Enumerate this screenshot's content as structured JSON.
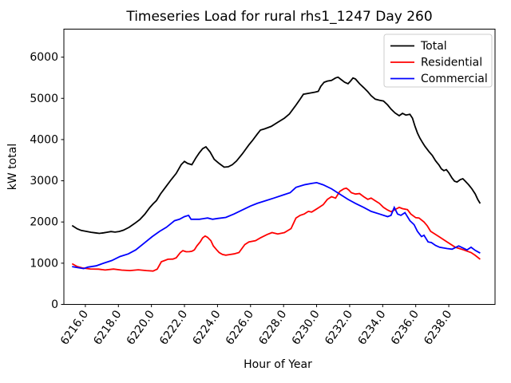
{
  "figure": {
    "background": "#ffffff"
  },
  "legend": {
    "position": "upper right",
    "border_color": "#cccccc"
  },
  "chart_data": {
    "type": "line",
    "title": "Timeseries Load for rural rhs1_1247  Day 260",
    "xlabel": "Hour of Year",
    "ylabel": "kW total",
    "xlim": [
      6214.7,
      6240.8
    ],
    "ylim": [
      0,
      6680
    ],
    "grid": false,
    "x_ticks": [
      6216,
      6218,
      6220,
      6222,
      6224,
      6226,
      6228,
      6230,
      6232,
      6234,
      6236,
      6238
    ],
    "x_tick_labels": [
      "6216.0",
      "6218.0",
      "6220.0",
      "6222.0",
      "6224.0",
      "6226.0",
      "6228.0",
      "6230.0",
      "6232.0",
      "6234.0",
      "6236.0",
      "6238.0"
    ],
    "y_ticks": [
      0,
      1000,
      2000,
      3000,
      4000,
      5000,
      6000
    ],
    "y_tick_labels": [
      "0",
      "1000",
      "2000",
      "3000",
      "4000",
      "5000",
      "6000"
    ],
    "series": [
      {
        "name": "Total",
        "color": "#000000",
        "points": [
          [
            6215.2,
            1915
          ],
          [
            6215.5,
            1835
          ],
          [
            6215.75,
            1795
          ],
          [
            6216.0,
            1778
          ],
          [
            6216.35,
            1750
          ],
          [
            6216.6,
            1736
          ],
          [
            6216.85,
            1723
          ],
          [
            6217.1,
            1736
          ],
          [
            6217.3,
            1750
          ],
          [
            6217.55,
            1768
          ],
          [
            6217.8,
            1755
          ],
          [
            6218.05,
            1770
          ],
          [
            6218.3,
            1800
          ],
          [
            6218.65,
            1870
          ],
          [
            6219.0,
            1970
          ],
          [
            6219.3,
            2060
          ],
          [
            6219.6,
            2190
          ],
          [
            6219.9,
            2350
          ],
          [
            6220.1,
            2440
          ],
          [
            6220.3,
            2520
          ],
          [
            6220.55,
            2680
          ],
          [
            6220.9,
            2870
          ],
          [
            6221.2,
            3030
          ],
          [
            6221.5,
            3180
          ],
          [
            6221.8,
            3390
          ],
          [
            6222.0,
            3470
          ],
          [
            6222.2,
            3420
          ],
          [
            6222.45,
            3390
          ],
          [
            6222.7,
            3560
          ],
          [
            6222.9,
            3680
          ],
          [
            6223.1,
            3780
          ],
          [
            6223.3,
            3825
          ],
          [
            6223.55,
            3700
          ],
          [
            6223.8,
            3520
          ],
          [
            6224.1,
            3420
          ],
          [
            6224.4,
            3330
          ],
          [
            6224.65,
            3340
          ],
          [
            6224.9,
            3390
          ],
          [
            6225.15,
            3480
          ],
          [
            6225.5,
            3650
          ],
          [
            6225.9,
            3870
          ],
          [
            6226.1,
            3970
          ],
          [
            6226.4,
            4130
          ],
          [
            6226.6,
            4230
          ],
          [
            6226.85,
            4260
          ],
          [
            6227.25,
            4320
          ],
          [
            6227.65,
            4420
          ],
          [
            6228.05,
            4520
          ],
          [
            6228.35,
            4620
          ],
          [
            6228.7,
            4810
          ],
          [
            6229.0,
            4980
          ],
          [
            6229.2,
            5100
          ],
          [
            6229.6,
            5130
          ],
          [
            6229.9,
            5150
          ],
          [
            6230.1,
            5170
          ],
          [
            6230.25,
            5290
          ],
          [
            6230.45,
            5390
          ],
          [
            6230.65,
            5420
          ],
          [
            6230.9,
            5435
          ],
          [
            6231.15,
            5495
          ],
          [
            6231.3,
            5515
          ],
          [
            6231.5,
            5450
          ],
          [
            6231.7,
            5390
          ],
          [
            6231.9,
            5355
          ],
          [
            6232.05,
            5420
          ],
          [
            6232.2,
            5495
          ],
          [
            6232.35,
            5470
          ],
          [
            6232.6,
            5355
          ],
          [
            6232.85,
            5260
          ],
          [
            6233.1,
            5160
          ],
          [
            6233.3,
            5065
          ],
          [
            6233.55,
            4980
          ],
          [
            6233.8,
            4955
          ],
          [
            6234.05,
            4935
          ],
          [
            6234.3,
            4840
          ],
          [
            6234.5,
            4740
          ],
          [
            6234.75,
            4645
          ],
          [
            6235.0,
            4580
          ],
          [
            6235.2,
            4635
          ],
          [
            6235.4,
            4595
          ],
          [
            6235.65,
            4615
          ],
          [
            6235.8,
            4520
          ],
          [
            6235.95,
            4325
          ],
          [
            6236.1,
            4160
          ],
          [
            6236.25,
            4035
          ],
          [
            6236.4,
            3935
          ],
          [
            6236.55,
            3840
          ],
          [
            6236.8,
            3710
          ],
          [
            6237.0,
            3615
          ],
          [
            6237.2,
            3485
          ],
          [
            6237.4,
            3385
          ],
          [
            6237.55,
            3290
          ],
          [
            6237.7,
            3245
          ],
          [
            6237.85,
            3270
          ],
          [
            6238.0,
            3195
          ],
          [
            6238.2,
            3065
          ],
          [
            6238.35,
            2990
          ],
          [
            6238.5,
            2970
          ],
          [
            6238.7,
            3030
          ],
          [
            6238.85,
            3050
          ],
          [
            6239.0,
            2990
          ],
          [
            6239.2,
            2905
          ],
          [
            6239.4,
            2805
          ],
          [
            6239.6,
            2680
          ],
          [
            6239.75,
            2550
          ],
          [
            6239.9,
            2450
          ]
        ]
      },
      {
        "name": "Residential",
        "color": "#ff0000",
        "points": [
          [
            6215.2,
            987
          ],
          [
            6215.5,
            920
          ],
          [
            6215.8,
            884
          ],
          [
            6216.3,
            860
          ],
          [
            6216.8,
            855
          ],
          [
            6217.2,
            835
          ],
          [
            6217.7,
            858
          ],
          [
            6218.2,
            833
          ],
          [
            6218.7,
            820
          ],
          [
            6219.2,
            840
          ],
          [
            6219.7,
            820
          ],
          [
            6220.1,
            810
          ],
          [
            6220.35,
            855
          ],
          [
            6220.6,
            1035
          ],
          [
            6220.8,
            1065
          ],
          [
            6221.0,
            1095
          ],
          [
            6221.3,
            1100
          ],
          [
            6221.5,
            1130
          ],
          [
            6221.75,
            1258
          ],
          [
            6221.9,
            1305
          ],
          [
            6222.1,
            1278
          ],
          [
            6222.3,
            1280
          ],
          [
            6222.45,
            1290
          ],
          [
            6222.6,
            1323
          ],
          [
            6222.75,
            1420
          ],
          [
            6222.95,
            1517
          ],
          [
            6223.1,
            1614
          ],
          [
            6223.25,
            1660
          ],
          [
            6223.4,
            1626
          ],
          [
            6223.6,
            1548
          ],
          [
            6223.75,
            1420
          ],
          [
            6223.95,
            1323
          ],
          [
            6224.1,
            1258
          ],
          [
            6224.3,
            1213
          ],
          [
            6224.5,
            1195
          ],
          [
            6224.75,
            1210
          ],
          [
            6225.0,
            1226
          ],
          [
            6225.3,
            1258
          ],
          [
            6225.65,
            1452
          ],
          [
            6225.9,
            1517
          ],
          [
            6226.3,
            1548
          ],
          [
            6226.6,
            1614
          ],
          [
            6227.0,
            1697
          ],
          [
            6227.3,
            1742
          ],
          [
            6227.65,
            1710
          ],
          [
            6228.05,
            1742
          ],
          [
            6228.45,
            1840
          ],
          [
            6228.75,
            2097
          ],
          [
            6229.0,
            2161
          ],
          [
            6229.25,
            2194
          ],
          [
            6229.5,
            2258
          ],
          [
            6229.7,
            2240
          ],
          [
            6229.9,
            2290
          ],
          [
            6230.15,
            2355
          ],
          [
            6230.4,
            2420
          ],
          [
            6230.65,
            2549
          ],
          [
            6230.9,
            2613
          ],
          [
            6231.15,
            2580
          ],
          [
            6231.4,
            2742
          ],
          [
            6231.65,
            2806
          ],
          [
            6231.8,
            2820
          ],
          [
            6231.95,
            2775
          ],
          [
            6232.1,
            2710
          ],
          [
            6232.35,
            2678
          ],
          [
            6232.6,
            2690
          ],
          [
            6232.85,
            2613
          ],
          [
            6233.1,
            2549
          ],
          [
            6233.3,
            2580
          ],
          [
            6233.55,
            2516
          ],
          [
            6233.8,
            2452
          ],
          [
            6234.05,
            2355
          ],
          [
            6234.3,
            2290
          ],
          [
            6234.5,
            2250
          ],
          [
            6234.7,
            2290
          ],
          [
            6234.85,
            2323
          ],
          [
            6235.0,
            2355
          ],
          [
            6235.2,
            2323
          ],
          [
            6235.5,
            2300
          ],
          [
            6235.7,
            2194
          ],
          [
            6236.0,
            2105
          ],
          [
            6236.2,
            2097
          ],
          [
            6236.5,
            2000
          ],
          [
            6236.7,
            1905
          ],
          [
            6236.9,
            1774
          ],
          [
            6237.4,
            1645
          ],
          [
            6237.9,
            1516
          ],
          [
            6238.4,
            1387
          ],
          [
            6238.9,
            1323
          ],
          [
            6239.35,
            1258
          ],
          [
            6239.6,
            1190
          ],
          [
            6239.9,
            1096
          ]
        ]
      },
      {
        "name": "Commercial",
        "color": "#0000ff",
        "points": [
          [
            6215.2,
            917
          ],
          [
            6215.5,
            895
          ],
          [
            6215.9,
            870
          ],
          [
            6216.15,
            904
          ],
          [
            6216.65,
            936
          ],
          [
            6217.1,
            1000
          ],
          [
            6217.6,
            1065
          ],
          [
            6218.1,
            1161
          ],
          [
            6218.6,
            1226
          ],
          [
            6219.05,
            1323
          ],
          [
            6219.55,
            1484
          ],
          [
            6220.05,
            1645
          ],
          [
            6220.5,
            1774
          ],
          [
            6220.9,
            1871
          ],
          [
            6221.15,
            1950
          ],
          [
            6221.4,
            2032
          ],
          [
            6221.7,
            2065
          ],
          [
            6222.0,
            2129
          ],
          [
            6222.25,
            2160
          ],
          [
            6222.4,
            2065
          ],
          [
            6222.9,
            2065
          ],
          [
            6223.4,
            2097
          ],
          [
            6223.7,
            2065
          ],
          [
            6224.0,
            2085
          ],
          [
            6224.5,
            2110
          ],
          [
            6225.0,
            2194
          ],
          [
            6225.5,
            2290
          ],
          [
            6226.0,
            2388
          ],
          [
            6226.4,
            2452
          ],
          [
            6226.9,
            2516
          ],
          [
            6227.4,
            2580
          ],
          [
            6227.9,
            2645
          ],
          [
            6228.4,
            2710
          ],
          [
            6228.75,
            2840
          ],
          [
            6229.25,
            2903
          ],
          [
            6229.7,
            2936
          ],
          [
            6230.0,
            2955
          ],
          [
            6230.4,
            2903
          ],
          [
            6230.9,
            2806
          ],
          [
            6231.4,
            2678
          ],
          [
            6231.9,
            2549
          ],
          [
            6232.35,
            2452
          ],
          [
            6232.85,
            2355
          ],
          [
            6233.3,
            2258
          ],
          [
            6233.8,
            2194
          ],
          [
            6234.3,
            2129
          ],
          [
            6234.5,
            2160
          ],
          [
            6234.7,
            2355
          ],
          [
            6234.9,
            2194
          ],
          [
            6235.1,
            2161
          ],
          [
            6235.35,
            2226
          ],
          [
            6235.65,
            2032
          ],
          [
            6235.9,
            1936
          ],
          [
            6236.1,
            1774
          ],
          [
            6236.35,
            1645
          ],
          [
            6236.5,
            1678
          ],
          [
            6236.75,
            1516
          ],
          [
            6236.95,
            1500
          ],
          [
            6237.2,
            1430
          ],
          [
            6237.45,
            1387
          ],
          [
            6237.9,
            1355
          ],
          [
            6238.2,
            1340
          ],
          [
            6238.6,
            1420
          ],
          [
            6239.1,
            1323
          ],
          [
            6239.35,
            1387
          ],
          [
            6239.6,
            1310
          ],
          [
            6239.9,
            1245
          ]
        ]
      }
    ]
  }
}
